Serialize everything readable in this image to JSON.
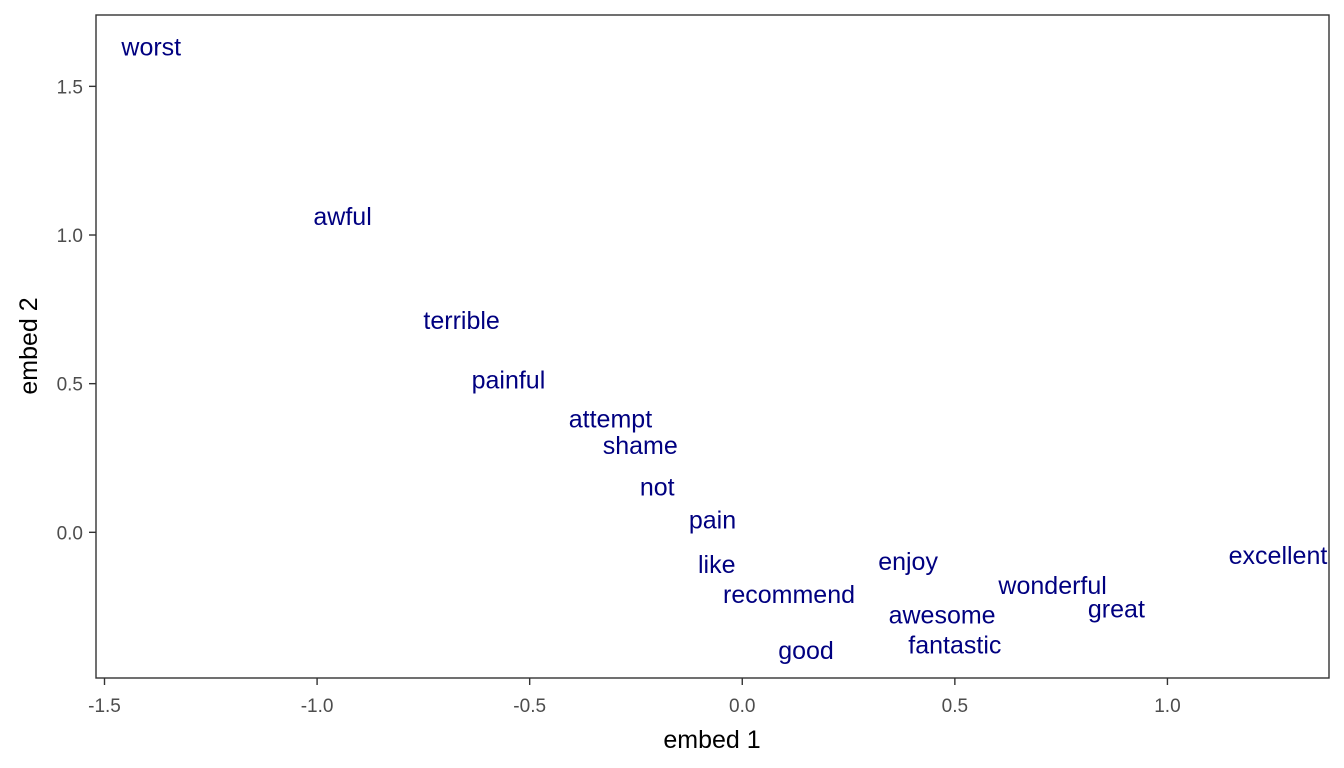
{
  "chart_data": {
    "type": "scatter",
    "title": "",
    "xlabel": "embed 1",
    "ylabel": "embed 2",
    "xlim": [
      -1.52,
      1.38
    ],
    "ylim": [
      -0.49,
      1.74
    ],
    "x_ticks": [
      {
        "value": -1.5,
        "label": "-1.5"
      },
      {
        "value": -1.0,
        "label": "-1.0"
      },
      {
        "value": -0.5,
        "label": "-0.5"
      },
      {
        "value": 0.0,
        "label": "0.0"
      },
      {
        "value": 0.5,
        "label": "0.5"
      },
      {
        "value": 1.0,
        "label": "1.0"
      }
    ],
    "y_ticks": [
      {
        "value": 0.0,
        "label": "0.0"
      },
      {
        "value": 0.5,
        "label": "0.5"
      },
      {
        "value": 1.0,
        "label": "1.0"
      },
      {
        "value": 1.5,
        "label": "1.5"
      }
    ],
    "grid": false,
    "label_color": "#000080",
    "points": [
      {
        "label": "worst",
        "x": -1.39,
        "y": 1.63
      },
      {
        "label": "awful",
        "x": -0.94,
        "y": 1.06
      },
      {
        "label": "terrible",
        "x": -0.66,
        "y": 0.71
      },
      {
        "label": "painful",
        "x": -0.55,
        "y": 0.51
      },
      {
        "label": "attempt",
        "x": -0.31,
        "y": 0.38
      },
      {
        "label": "shame",
        "x": -0.24,
        "y": 0.29
      },
      {
        "label": "not",
        "x": -0.2,
        "y": 0.15
      },
      {
        "label": "pain",
        "x": -0.07,
        "y": 0.04
      },
      {
        "label": "like",
        "x": -0.06,
        "y": -0.11
      },
      {
        "label": "recommend",
        "x": 0.11,
        "y": -0.21
      },
      {
        "label": "good",
        "x": 0.15,
        "y": -0.4
      },
      {
        "label": "enjoy",
        "x": 0.39,
        "y": -0.1
      },
      {
        "label": "awesome",
        "x": 0.47,
        "y": -0.28
      },
      {
        "label": "fantastic",
        "x": 0.5,
        "y": -0.38
      },
      {
        "label": "wonderful",
        "x": 0.73,
        "y": -0.18
      },
      {
        "label": "great",
        "x": 0.88,
        "y": -0.26
      },
      {
        "label": "excellent",
        "x": 1.26,
        "y": -0.08
      }
    ]
  }
}
